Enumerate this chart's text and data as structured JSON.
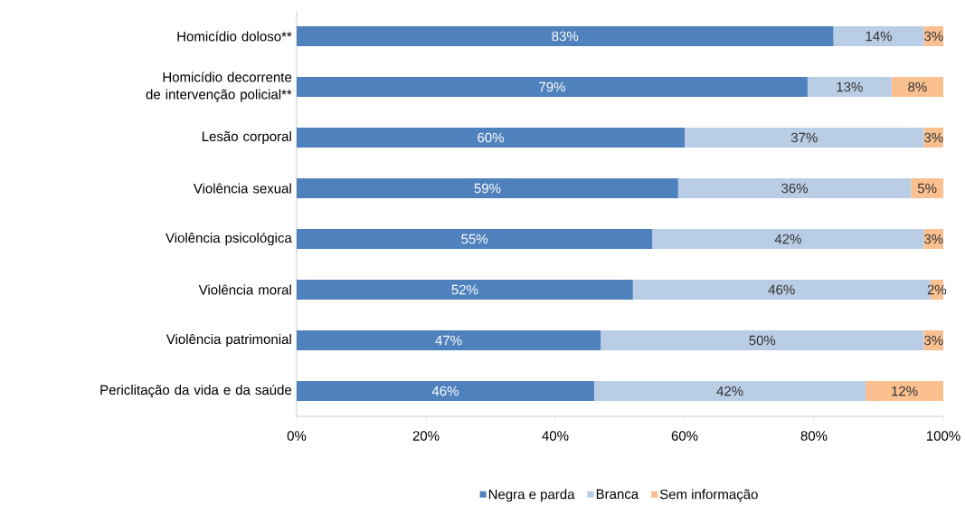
{
  "chart_data": {
    "type": "bar",
    "orientation": "horizontal",
    "stacked": true,
    "categories": [
      "Homicídio doloso**",
      "Homicídio decorrente de intervenção policial**",
      "Lesão corporal",
      "Violência sexual",
      "Violência psicológica",
      "Violência moral",
      "Violência patrimonial",
      "Periclitação da vida e da saúde"
    ],
    "series": [
      {
        "name": "Negra e parda",
        "color": "#4f81bd",
        "values": [
          83,
          79,
          60,
          59,
          55,
          52,
          47,
          46
        ],
        "value_labels": [
          "83%",
          "79%",
          "60%",
          "59%",
          "55%",
          "52%",
          "47%",
          "46%"
        ]
      },
      {
        "name": "Branca",
        "color": "#b9cde5",
        "values": [
          14,
          13,
          37,
          36,
          42,
          46,
          50,
          42
        ],
        "value_labels": [
          "14%",
          "13%",
          "37%",
          "36%",
          "42%",
          "46%",
          "50%",
          "42%"
        ]
      },
      {
        "name": "Sem informação",
        "color": "#fac090",
        "values": [
          3,
          8,
          3,
          5,
          3,
          2,
          3,
          12
        ],
        "value_labels": [
          "3%",
          "8%",
          "3%",
          "5%",
          "3%",
          "2%",
          "3%",
          "12%"
        ]
      }
    ],
    "xlim": [
      0,
      100
    ],
    "xticks": [
      {
        "value": 0,
        "label": "0%"
      },
      {
        "value": 20,
        "label": "20%"
      },
      {
        "value": 40,
        "label": "40%"
      },
      {
        "value": 60,
        "label": "60%"
      },
      {
        "value": 80,
        "label": "80%"
      },
      {
        "value": 100,
        "label": "100%"
      }
    ],
    "grid": false,
    "legend": "bottom"
  }
}
